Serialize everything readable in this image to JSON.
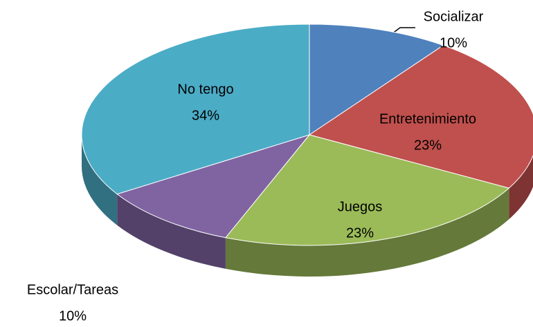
{
  "chart_data": {
    "type": "pie3d",
    "categories": [
      "Socializar",
      "Entretenimiento",
      "Juegos",
      "Escolar/Tareas",
      "No tengo"
    ],
    "values": [
      10,
      23,
      23,
      10,
      34
    ],
    "value_labels": [
      "10%",
      "23%",
      "23%",
      "10%",
      "34%"
    ],
    "colors": [
      "#4f81bd",
      "#c0504d",
      "#9bbb59",
      "#8064a2",
      "#4bacc6"
    ]
  }
}
